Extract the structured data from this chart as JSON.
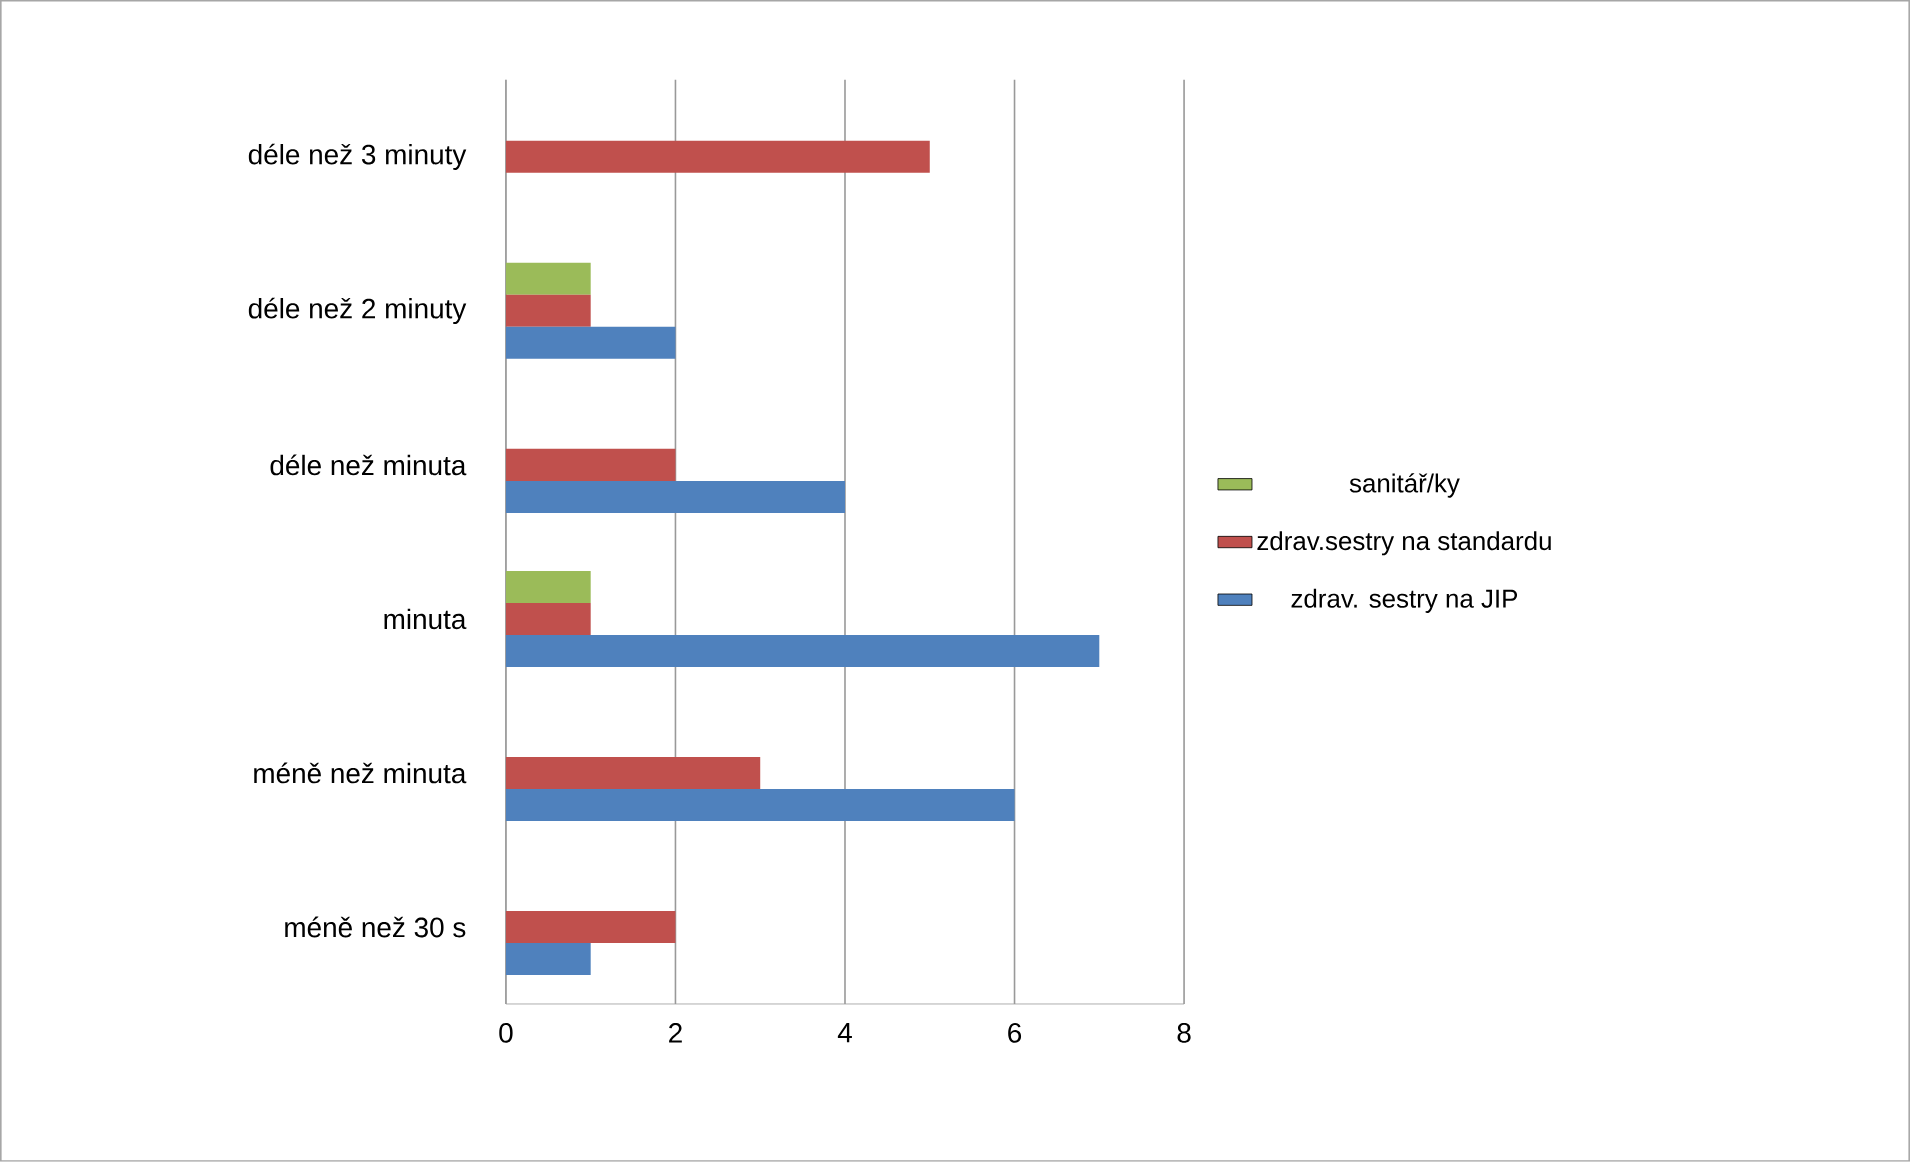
{
  "chart_data": {
    "type": "bar",
    "orientation": "horizontal",
    "categories": [
      "déle než 3 minuty",
      "déle než 2 minuty",
      "déle než minuta",
      "minuta",
      "méně než minuta",
      "méně než 30 s"
    ],
    "series": [
      {
        "name": "sanitář/ky",
        "color": "#9bbb59",
        "values": [
          null,
          1,
          null,
          1,
          null,
          null
        ]
      },
      {
        "name": "zdrav.sestry na standardu",
        "color": "#c0504d",
        "values": [
          5,
          1,
          2,
          1,
          3,
          2
        ]
      },
      {
        "name": "zdrav. sestry na JIP",
        "color": "#4f81bd",
        "values": [
          null,
          2,
          4,
          7,
          6,
          1
        ]
      }
    ],
    "xlim": [
      0,
      8
    ],
    "xticks": [
      0,
      2,
      4,
      6,
      8
    ],
    "grid": "x",
    "legend": "right"
  }
}
